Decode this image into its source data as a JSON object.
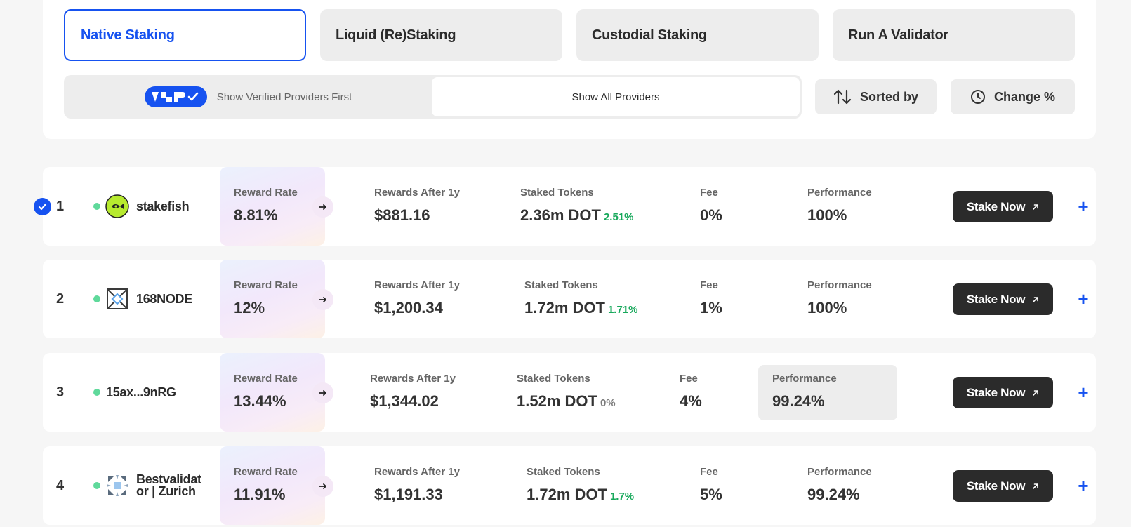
{
  "tabs": [
    {
      "label": "Native Staking",
      "active": true
    },
    {
      "label": "Liquid (Re)Staking",
      "active": false
    },
    {
      "label": "Custodial Staking",
      "active": false
    },
    {
      "label": "Run A Validator",
      "active": false
    }
  ],
  "filter": {
    "badge": "VSP",
    "verified_label": "Show Verified Providers First",
    "all_label": "Show All Providers",
    "selected": "all"
  },
  "controls": {
    "sort_label": "Sorted by",
    "change_label": "Change %"
  },
  "accent_color": "#1652f0",
  "providers": [
    {
      "rank": "1",
      "name": "stakefish",
      "logo": "stakefish-logo",
      "verified": true,
      "reward_rate_label": "Reward Rate",
      "reward_rate": "8.81%",
      "rewards_label": "Rewards After 1y",
      "rewards": "$881.16",
      "staked_label": "Staked Tokens",
      "staked": "2.36m DOT",
      "staked_change": "2.51%",
      "fee_label": "Fee",
      "fee": "0%",
      "performance_label": "Performance",
      "performance": "100%",
      "stake_button": "Stake Now"
    },
    {
      "rank": "2",
      "name": "168NODE",
      "logo": "168node-logo",
      "verified": false,
      "reward_rate_label": "Reward Rate",
      "reward_rate": "12%",
      "rewards_label": "Rewards After 1y",
      "rewards": "$1,200.34",
      "staked_label": "Staked Tokens",
      "staked": "1.72m DOT",
      "staked_change": "1.71%",
      "fee_label": "Fee",
      "fee": "1%",
      "performance_label": "Performance",
      "performance": "100%",
      "stake_button": "Stake Now"
    },
    {
      "rank": "3",
      "name": "15ax...9nRG",
      "logo": "",
      "verified": false,
      "reward_rate_label": "Reward Rate",
      "reward_rate": "13.44%",
      "rewards_label": "Rewards After 1y",
      "rewards": "$1,344.02",
      "staked_label": "Staked Tokens",
      "staked": "1.52m DOT",
      "staked_change": "0%",
      "fee_label": "Fee",
      "fee": "4%",
      "performance_label": "Performance",
      "performance": "99.24%",
      "stake_button": "Stake Now"
    },
    {
      "rank": "4",
      "name_line1": "Bestvalidat",
      "name_line2": "or | Zurich",
      "logo": "bestvalidator-logo",
      "verified": false,
      "reward_rate_label": "Reward Rate",
      "reward_rate": "11.91%",
      "rewards_label": "Rewards After 1y",
      "rewards": "$1,191.33",
      "staked_label": "Staked Tokens",
      "staked": "1.72m DOT",
      "staked_change": "1.7%",
      "fee_label": "Fee",
      "fee": "5%",
      "performance_label": "Performance",
      "performance": "99.24%",
      "stake_button": "Stake Now"
    }
  ]
}
